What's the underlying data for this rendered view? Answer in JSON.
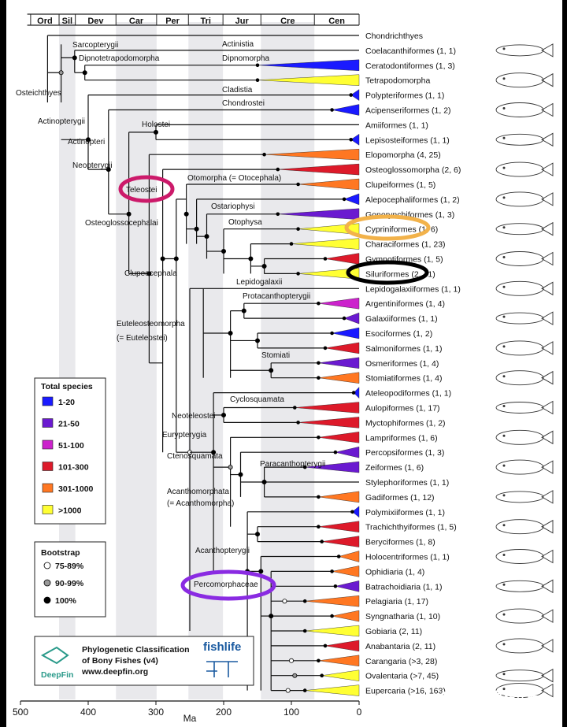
{
  "periods": [
    "Ord",
    "Sil",
    "Dev",
    "Car",
    "Per",
    "Tri",
    "Jur",
    "Cre",
    "Cen"
  ],
  "axis": {
    "label": "Ma",
    "ticks": [
      "500",
      "400",
      "300",
      "200",
      "100",
      "0"
    ]
  },
  "taxa": [
    {
      "label": "Chondrichthyes",
      "color": "none",
      "bar": "none"
    },
    {
      "label": "Coelacanthiformes (1, 1)",
      "color": "none",
      "bar": "none"
    },
    {
      "label": "Ceratodontiformes (1, 3)",
      "color": "#1a1aff",
      "bar": "tri"
    },
    {
      "label": "Tetrapodomorpha",
      "color": "#ffff33",
      "bar": "tri"
    },
    {
      "label": "Polypteriformes (1, 1)",
      "color": "#1a1aff",
      "bar": "tri"
    },
    {
      "label": "Acipenseriformes (1, 2)",
      "color": "#1a1aff",
      "bar": "tri"
    },
    {
      "label": "Amiiformes (1, 1)",
      "color": "none",
      "bar": "none"
    },
    {
      "label": "Lepisosteiformes (1, 1)",
      "color": "#1a1aff",
      "bar": "tri"
    },
    {
      "label": "Elopomorpha (4, 25)",
      "color": "#ff7722",
      "bar": "tri"
    },
    {
      "label": "Osteoglossomorpha (2, 6)",
      "color": "#dd1a2a",
      "bar": "tri"
    },
    {
      "label": "Clupeiformes (1, 5)",
      "color": "#ff7722",
      "bar": "tri"
    },
    {
      "label": "Alepocephaliformes (1, 2)",
      "color": "#1a1aff",
      "bar": "tri"
    },
    {
      "label": "Gonorynchiformes (1, 3)",
      "color": "#6a1ad0",
      "bar": "tri"
    },
    {
      "label": "Cypriniformes (1, 6)",
      "color": "#ffff33",
      "bar": "tri"
    },
    {
      "label": "Characiformes (1, 23)",
      "color": "#ffff33",
      "bar": "tri"
    },
    {
      "label": "Gymnotiformes (1, 5)",
      "color": "#dd1a2a",
      "bar": "tri"
    },
    {
      "label": "Siluriformes (2, 41)",
      "color": "#ffff33",
      "bar": "tri"
    },
    {
      "label": "Lepidogalaxiiformes (1, 1)",
      "color": "none",
      "bar": "none"
    },
    {
      "label": "Argentiniformes (1, 4)",
      "color": "#cc22cc",
      "bar": "tri"
    },
    {
      "label": "Galaxiiformes (1, 1)",
      "color": "#6a1ad0",
      "bar": "tri"
    },
    {
      "label": "Esociformes (1, 2)",
      "color": "#1a1aff",
      "bar": "tri"
    },
    {
      "label": "Salmoniformes (1, 1)",
      "color": "#dd1a2a",
      "bar": "tri"
    },
    {
      "label": "Osmeriformes (1, 4)",
      "color": "#6a1ad0",
      "bar": "tri"
    },
    {
      "label": "Stomiatiformes (1, 4)",
      "color": "#ff7722",
      "bar": "tri"
    },
    {
      "label": "Ateleopodiformes (1, 1)",
      "color": "#1a1aff",
      "bar": "tri"
    },
    {
      "label": "Aulopiformes (1, 17)",
      "color": "#dd1a2a",
      "bar": "tri"
    },
    {
      "label": "Myctophiformes (1, 2)",
      "color": "#dd1a2a",
      "bar": "tri"
    },
    {
      "label": "Lampriformes (1, 6)",
      "color": "#dd1a2a",
      "bar": "tri"
    },
    {
      "label": "Percopsiformes (1, 3)",
      "color": "#6a1ad0",
      "bar": "tri"
    },
    {
      "label": "Zeiformes (1, 6)",
      "color": "#6a1ad0",
      "bar": "tri"
    },
    {
      "label": "Stylephoriformes (1, 1)",
      "color": "none",
      "bar": "none"
    },
    {
      "label": "Gadiformes (1, 12)",
      "color": "#ff7722",
      "bar": "tri"
    },
    {
      "label": "Polymixiiformes (1, 1)",
      "color": "#1a1aff",
      "bar": "tri"
    },
    {
      "label": "Trachichthyiformes (1, 5)",
      "color": "#dd1a2a",
      "bar": "tri"
    },
    {
      "label": "Beryciformes (1, 8)",
      "color": "#dd1a2a",
      "bar": "tri"
    },
    {
      "label": "Holocentriformes (1, 1)",
      "color": "#ff7722",
      "bar": "tri"
    },
    {
      "label": "Ophidiaria (1, 4)",
      "color": "#ff7722",
      "bar": "tri"
    },
    {
      "label": "Batrachoidiaria (1, 1)",
      "color": "#6a1ad0",
      "bar": "tri"
    },
    {
      "label": "Pelagiaria (1, 17)",
      "color": "#ff7722",
      "bar": "tri"
    },
    {
      "label": "Syngnatharia (1, 10)",
      "color": "#ff7722",
      "bar": "tri"
    },
    {
      "label": "Gobiaria (2, 11)",
      "color": "#ffff33",
      "bar": "tri"
    },
    {
      "label": "Anabantaria (2, 11)",
      "color": "#dd1a2a",
      "bar": "tri"
    },
    {
      "label": "Carangaria (>3, 28)",
      "color": "#ff7722",
      "bar": "tri"
    },
    {
      "label": "Ovalentaria (>7, 45)",
      "color": "#ffff33",
      "bar": "tri"
    },
    {
      "label": "Eupercaria (>16, 163)",
      "color": "#ffff33",
      "bar": "tri"
    }
  ],
  "clades": [
    "Sarcopterygii",
    "Actinistia",
    "Dipnotetrapodomorpha",
    "Dipnomorpha",
    "Osteichthyes",
    "Cladistia",
    "Chondrostei",
    "Actinopterygii",
    "Holostei",
    "Actinopteri",
    "Neopterygii",
    "Teleostei",
    "Otomorpha (= Otocephala)",
    "Osteoglossocephalai",
    "Ostariophysi",
    "Otophysa",
    "Clupeocephala",
    "Lepidogalaxii",
    "Protacanthopterygii",
    "Euteleosteomorpha",
    "(= Euteleostei)",
    "Stomiati",
    "Neoteleostei",
    "Cyclosquamata",
    "Eurypterygia",
    "Paracanthopterygii",
    "Ctenosquamata",
    "Acanthomorphata",
    "(= Acanthomorpha)",
    "Acanthopterygii",
    "Percomorphaceae"
  ],
  "legend": {
    "species_title": "Total species",
    "species": [
      {
        "label": "1-20",
        "color": "#1a1aff"
      },
      {
        "label": "21-50",
        "color": "#6a1ad0"
      },
      {
        "label": "51-100",
        "color": "#cc22cc"
      },
      {
        "label": "101-300",
        "color": "#dd1a2a"
      },
      {
        "label": "301-1000",
        "color": "#ff7722"
      },
      {
        "label": ">1000",
        "color": "#ffff33"
      }
    ],
    "bootstrap_title": "Bootstrap",
    "bootstrap": [
      {
        "label": "75-89%",
        "fill": "#ffffff"
      },
      {
        "label": "90-99%",
        "fill": "#999999"
      },
      {
        "label": "100%",
        "fill": "#000000"
      }
    ]
  },
  "logo": {
    "line1": "Phylogenetic Classification",
    "line2": "of Bony Fishes (v4)",
    "line3": "www.deepfin.org",
    "deepfin": "DeepFin",
    "fishlife": "fishlife"
  },
  "watermark": "知乎 @大君拌汪酱",
  "highlights": [
    {
      "target": "Teleostei",
      "color": "#cc1a6a"
    },
    {
      "target": "Cypriniformes",
      "color": "#f2b24a"
    },
    {
      "target": "Siluriformes",
      "color": "#000000"
    },
    {
      "target": "Percomorphaceae",
      "color": "#8a2be2"
    }
  ]
}
